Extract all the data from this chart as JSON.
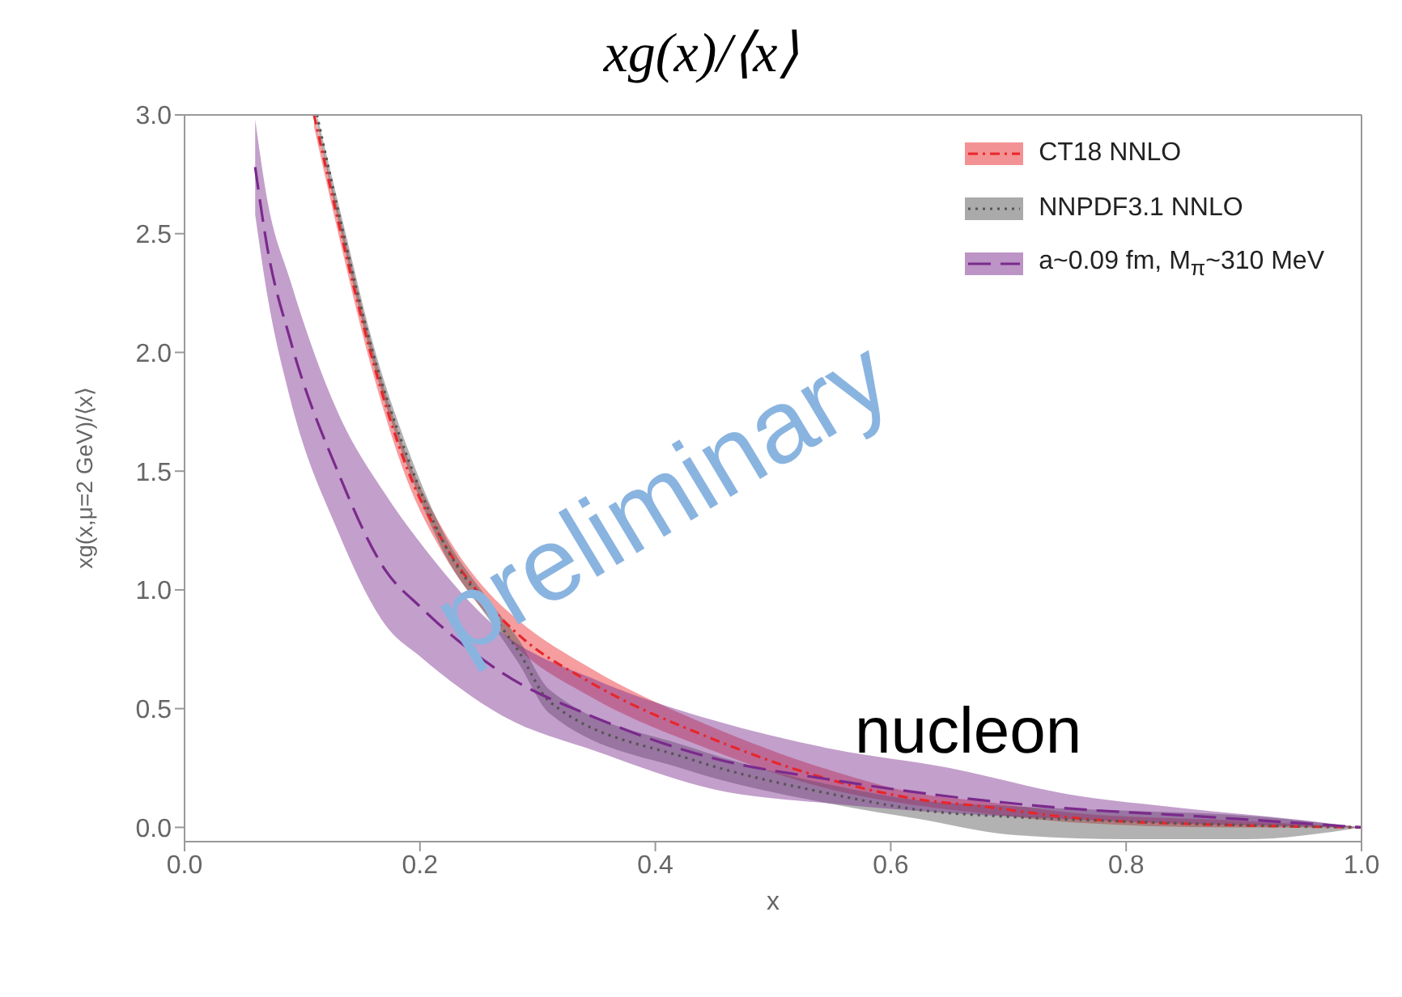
{
  "chart_data": {
    "type": "line",
    "title": "xg(x)/⟨x⟩",
    "xlabel": "x",
    "ylabel": "xg(x,μ=2 GeV)/⟨x⟩",
    "xlim": [
      0,
      1
    ],
    "ylim": [
      -0.06,
      3.0
    ],
    "xticks": [
      {
        "value": 0,
        "label": "0.0"
      },
      {
        "value": 0.2,
        "label": "0.2"
      },
      {
        "value": 0.4,
        "label": "0.4"
      },
      {
        "value": 0.6,
        "label": "0.6"
      },
      {
        "value": 0.8,
        "label": "0.8"
      },
      {
        "value": 1,
        "label": "1.0"
      }
    ],
    "yticks": [
      {
        "value": 0,
        "label": "0.0"
      },
      {
        "value": 0.5,
        "label": "0.5"
      },
      {
        "value": 1,
        "label": "1.0"
      },
      {
        "value": 1.5,
        "label": "1.5"
      },
      {
        "value": 2,
        "label": "2.0"
      },
      {
        "value": 2.5,
        "label": "2.5"
      },
      {
        "value": 3,
        "label": "3.0"
      }
    ],
    "grid": false,
    "legend": "top right",
    "annotations": [
      "preliminary",
      "nucleon"
    ],
    "series": [
      {
        "name": "CT18 NNLO",
        "color": "#e8262a",
        "line_style": "dashdot",
        "x": [
          0.11,
          0.133,
          0.158,
          0.19,
          0.22,
          0.258,
          0.284,
          0.345,
          0.445,
          0.549,
          0.626,
          0.677,
          0.757,
          0.887,
          1.0
        ],
        "values": [
          3.0,
          2.5,
          2.0,
          1.5,
          1.2,
          0.94,
          0.81,
          0.61,
          0.38,
          0.2,
          0.116,
          0.089,
          0.039,
          0.01,
          0
        ],
        "lower": [
          2.95,
          2.45,
          1.95,
          1.45,
          1.15,
          0.89,
          0.75,
          0.55,
          0.33,
          0.16,
          0.09,
          0.06,
          0.02,
          0.0,
          0
        ],
        "upper": [
          3.0,
          2.55,
          2.05,
          1.55,
          1.25,
          0.99,
          0.87,
          0.67,
          0.43,
          0.24,
          0.14,
          0.11,
          0.06,
          0.03,
          0
        ]
      },
      {
        "name": "NNPDF3.1 NNLO",
        "color": "#555555",
        "line_style": "dotted",
        "x": [
          0.1125,
          0.135,
          0.16,
          0.19,
          0.22,
          0.258,
          0.284,
          0.31,
          0.428,
          0.548,
          0.63,
          0.7,
          0.8,
          0.9,
          1.0
        ],
        "values": [
          3.0,
          2.5,
          2.0,
          1.55,
          1.2,
          0.92,
          0.74,
          0.53,
          0.29,
          0.142,
          0.07,
          0.045,
          0.025,
          0.01,
          0
        ],
        "lower": [
          2.96,
          2.46,
          1.96,
          1.51,
          1.16,
          0.88,
          0.69,
          0.48,
          0.24,
          0.1,
          0.03,
          -0.03,
          -0.05,
          -0.05,
          0
        ],
        "upper": [
          3.0,
          2.54,
          2.04,
          1.59,
          1.24,
          0.96,
          0.79,
          0.58,
          0.34,
          0.18,
          0.11,
          0.09,
          0.07,
          0.05,
          0
        ]
      },
      {
        "name": "a~0.09 fm, M$_{π}$~310 MeV",
        "color": "#7a2a8c",
        "line_style": "dashed",
        "x": [
          0.06,
          0.07,
          0.09,
          0.13,
          0.171,
          0.2,
          0.27,
          0.35,
          0.45,
          0.55,
          0.65,
          0.75,
          0.85,
          0.95,
          1.0
        ],
        "values": [
          2.78,
          2.45,
          2.05,
          1.5,
          1.08,
          0.93,
          0.65,
          0.46,
          0.29,
          0.2,
          0.13,
          0.08,
          0.05,
          0.017,
          0
        ],
        "lower": [
          2.58,
          2.25,
          1.8,
          1.25,
          0.85,
          0.72,
          0.47,
          0.32,
          0.16,
          0.1,
          0.06,
          0.035,
          0.015,
          0.005,
          0
        ],
        "upper": [
          2.98,
          2.65,
          2.3,
          1.75,
          1.4,
          1.2,
          0.82,
          0.62,
          0.45,
          0.33,
          0.25,
          0.14,
          0.08,
          0.03,
          0
        ]
      }
    ]
  }
}
